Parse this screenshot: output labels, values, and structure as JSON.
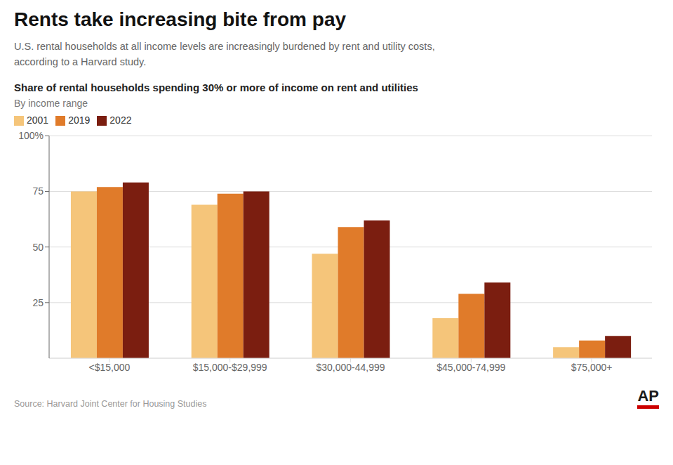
{
  "chart_data": {
    "type": "bar",
    "title": "Rents take increasing bite from pay",
    "subtitle": "U.S. rental households at all income levels are increasingly burdened by rent and utility costs,\naccording to a Harvard study.",
    "chart_title": "Share of rental households spending 30% or more of income on rent and utilities",
    "chart_subtitle": "By income range",
    "source": "Source: Harvard Joint Center for Housing Studies",
    "annotations": [
      "AP"
    ],
    "categories": [
      "<$15,000",
      "$15,000-$29,999",
      "$30,000-44,999",
      "$45,000-74,999",
      "$75,000+"
    ],
    "series": [
      {
        "name": "2001",
        "color": "#F5C57A",
        "values": [
          75,
          69,
          47,
          18,
          5
        ]
      },
      {
        "name": "2019",
        "color": "#E07B2A",
        "values": [
          77,
          74,
          59,
          29,
          8
        ]
      },
      {
        "name": "2022",
        "color": "#7B1E10",
        "values": [
          79,
          75,
          62,
          34,
          10
        ]
      }
    ],
    "ylim": [
      0,
      100
    ],
    "yticks": [
      25,
      50,
      75,
      {
        "value": 100,
        "label": "100%"
      }
    ],
    "grid": true,
    "legend": "top"
  }
}
